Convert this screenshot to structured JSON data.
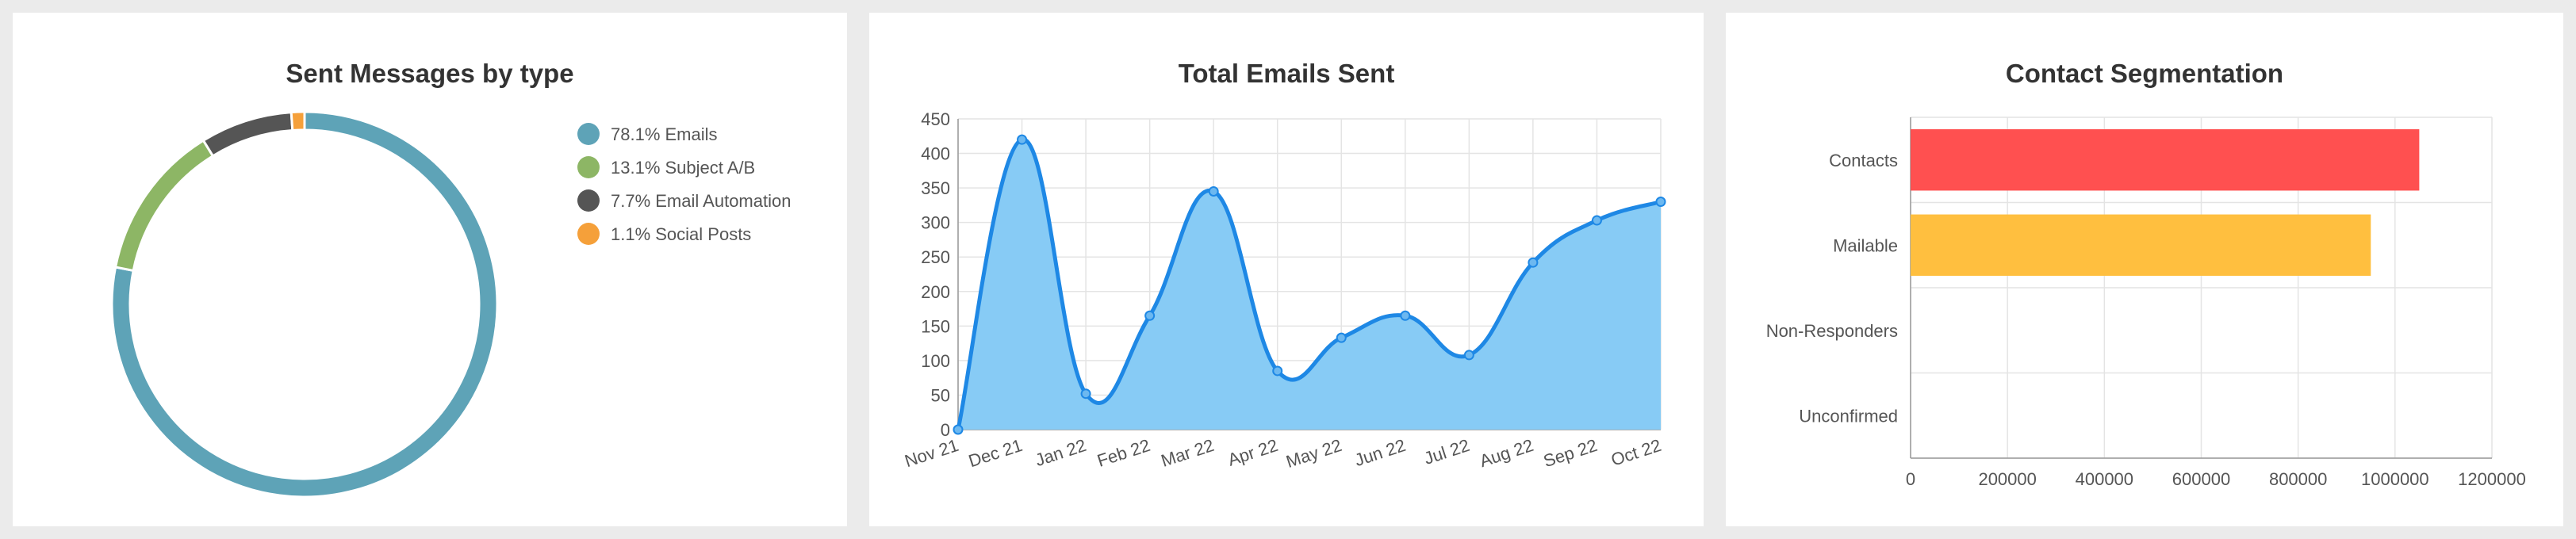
{
  "chart_data": [
    {
      "type": "pie",
      "title": "Sent Messages by type",
      "categories": [
        "78.1% Emails",
        "13.1% Subject A/B",
        "7.7% Email Automation",
        "1.1% Social Posts"
      ],
      "values": [
        78.1,
        13.1,
        7.7,
        1.1
      ],
      "colors": [
        "#5ea3b7",
        "#8db665",
        "#555555",
        "#f5a03a"
      ],
      "legend": "right",
      "donut": true
    },
    {
      "type": "area",
      "title": "Total Emails Sent",
      "x": [
        "Nov 21",
        "Dec 21",
        "Jan 22",
        "Feb 22",
        "Mar 22",
        "Apr 22",
        "May 22",
        "Jun 22",
        "Jul 22",
        "Aug 22",
        "Sep 22",
        "Oct 22"
      ],
      "values": [
        0,
        420,
        52,
        165,
        345,
        85,
        133,
        165,
        108,
        242,
        303,
        330
      ],
      "ylim": [
        0,
        450
      ],
      "yticks": [
        0,
        50,
        100,
        150,
        200,
        250,
        300,
        350,
        400,
        450
      ],
      "grid": true,
      "colors": {
        "line": "#1e88e5",
        "fill": "#87cbf5",
        "point": "#6cb8f0"
      }
    },
    {
      "type": "bar",
      "orientation": "horizontal",
      "title": "Contact Segmentation",
      "categories": [
        "Contacts",
        "Mailable",
        "Non-Responders",
        "Unconfirmed"
      ],
      "values": [
        1050000,
        950000,
        0,
        0
      ],
      "xlim": [
        0,
        1200000
      ],
      "xticks": [
        0,
        200000,
        400000,
        600000,
        800000,
        1000000,
        1200000
      ],
      "grid": true,
      "colors": [
        "#ff5050",
        "#ffbf3f",
        "#cccccc",
        "#cccccc"
      ]
    }
  ]
}
